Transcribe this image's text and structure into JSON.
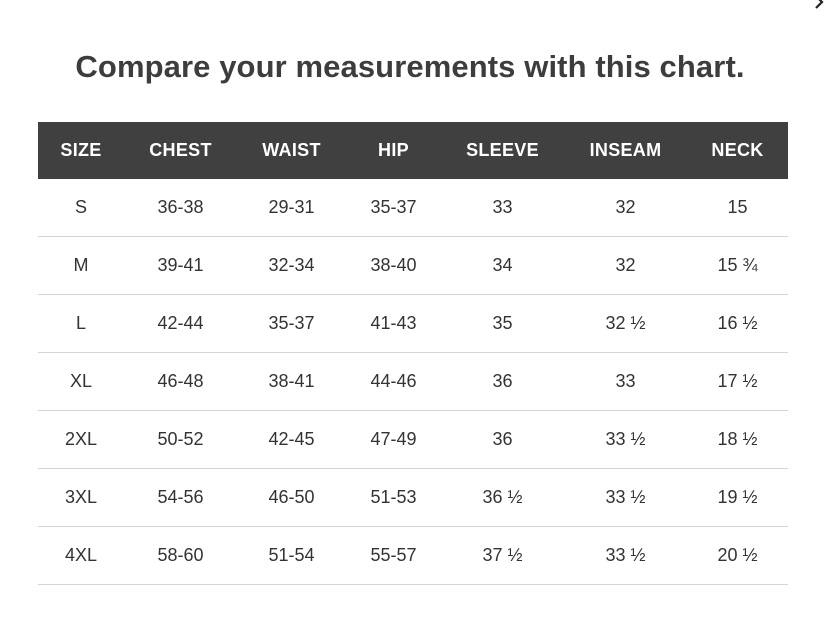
{
  "page": {
    "title": "Compare your measurements with this chart."
  },
  "icons": {
    "corner": "chevron-right-icon"
  },
  "table": {
    "headers": [
      "SIZE",
      "CHEST",
      "WAIST",
      "HIP",
      "SLEEVE",
      "INSEAM",
      "NECK"
    ],
    "rows": [
      [
        "S",
        "36-38",
        "29-31",
        "35-37",
        "33",
        "32",
        "15"
      ],
      [
        "M",
        "39-41",
        "32-34",
        "38-40",
        "34",
        "32",
        "15 ¾"
      ],
      [
        "L",
        "42-44",
        "35-37",
        "41-43",
        "35",
        "32 ½",
        "16 ½"
      ],
      [
        "XL",
        "46-48",
        "38-41",
        "44-46",
        "36",
        "33",
        "17 ½"
      ],
      [
        "2XL",
        "50-52",
        "42-45",
        "47-49",
        "36",
        "33 ½",
        "18 ½"
      ],
      [
        "3XL",
        "54-56",
        "46-50",
        "51-53",
        "36 ½",
        "33 ½",
        "19 ½"
      ],
      [
        "4XL",
        "58-60",
        "51-54",
        "55-57",
        "37 ½",
        "33 ½",
        "20 ½"
      ]
    ]
  },
  "colors": {
    "header_bg": "#404040",
    "header_text": "#ffffff",
    "title_text": "#3d3d3d",
    "row_divider": "#d5d5d5"
  }
}
